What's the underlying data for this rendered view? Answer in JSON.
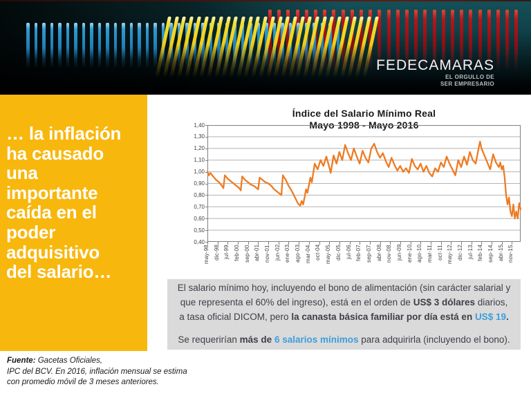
{
  "banner": {
    "logo": "FEDECAMARAS",
    "tagline_line1": "EL ORGULLO DE",
    "tagline_line2": "SER EMPRESARIO"
  },
  "sidebar": {
    "headline": "… la inflación\nha causado\nuna\nimportante\ncaída en el\npoder\nadquisitivo\ndel salario…"
  },
  "chart_data": {
    "type": "line",
    "title_line1": "Índice del Salario Mínimo Real",
    "title_line2": "Mayo 1998 - Mayo 2016",
    "xlabel": "",
    "ylabel": "",
    "ylim": [
      0.4,
      1.4
    ],
    "ytick_step": 0.1,
    "ytick_labels": [
      "1,40",
      "1,30",
      "1,20",
      "1,10",
      "1,00",
      "0,90",
      "0,80",
      "0,70",
      "0,60",
      "0,50",
      "0,40"
    ],
    "xtick_labels": [
      "may-98",
      "dic-98",
      "jul-99",
      "feb-00",
      "sep-00",
      "abr-01",
      "nov-01",
      "jun-02",
      "ene-03",
      "ago-03",
      "mar-04",
      "oct-04",
      "may-05",
      "dic-05",
      "jul-06",
      "feb-07",
      "sep-07",
      "abr-08",
      "nov-08",
      "jun-09",
      "ene-10",
      "ago-10",
      "mar-11",
      "oct-11",
      "may-12",
      "dic-12",
      "jul-13",
      "feb-14",
      "sep-14",
      "abr-15",
      "nov-15"
    ],
    "xtick_month_interval": 7,
    "months_total": 217,
    "grid": true,
    "legend": "none",
    "series_name": "Índice del Salario Mínimo Real",
    "points": [
      [
        0,
        1.0
      ],
      [
        1,
        0.97
      ],
      [
        2,
        0.99
      ],
      [
        4,
        0.96
      ],
      [
        6,
        0.93
      ],
      [
        8,
        0.91
      ],
      [
        10,
        0.88
      ],
      [
        11,
        0.86
      ],
      [
        12,
        0.97
      ],
      [
        14,
        0.94
      ],
      [
        16,
        0.92
      ],
      [
        18,
        0.9
      ],
      [
        20,
        0.88
      ],
      [
        22,
        0.86
      ],
      [
        23,
        0.84
      ],
      [
        24,
        0.96
      ],
      [
        26,
        0.93
      ],
      [
        28,
        0.91
      ],
      [
        30,
        0.89
      ],
      [
        32,
        0.88
      ],
      [
        34,
        0.86
      ],
      [
        35,
        0.85
      ],
      [
        36,
        0.95
      ],
      [
        38,
        0.93
      ],
      [
        40,
        0.91
      ],
      [
        42,
        0.9
      ],
      [
        44,
        0.88
      ],
      [
        46,
        0.85
      ],
      [
        48,
        0.83
      ],
      [
        50,
        0.81
      ],
      [
        51,
        0.8
      ],
      [
        52,
        0.97
      ],
      [
        54,
        0.93
      ],
      [
        56,
        0.88
      ],
      [
        58,
        0.84
      ],
      [
        60,
        0.79
      ],
      [
        62,
        0.74
      ],
      [
        63,
        0.72
      ],
      [
        64,
        0.71
      ],
      [
        65,
        0.75
      ],
      [
        66,
        0.72
      ],
      [
        67,
        0.78
      ],
      [
        68,
        0.85
      ],
      [
        69,
        0.82
      ],
      [
        71,
        0.95
      ],
      [
        72,
        0.91
      ],
      [
        74,
        1.07
      ],
      [
        76,
        1.02
      ],
      [
        78,
        1.1
      ],
      [
        80,
        1.05
      ],
      [
        82,
        1.13
      ],
      [
        84,
        1.04
      ],
      [
        85,
        0.99
      ],
      [
        87,
        1.14
      ],
      [
        89,
        1.07
      ],
      [
        91,
        1.17
      ],
      [
        93,
        1.1
      ],
      [
        95,
        1.23
      ],
      [
        97,
        1.16
      ],
      [
        99,
        1.1
      ],
      [
        101,
        1.2
      ],
      [
        103,
        1.13
      ],
      [
        105,
        1.07
      ],
      [
        107,
        1.18
      ],
      [
        109,
        1.12
      ],
      [
        111,
        1.08
      ],
      [
        113,
        1.2
      ],
      [
        115,
        1.24
      ],
      [
        117,
        1.17
      ],
      [
        119,
        1.12
      ],
      [
        121,
        1.16
      ],
      [
        123,
        1.09
      ],
      [
        125,
        1.04
      ],
      [
        127,
        1.12
      ],
      [
        129,
        1.06
      ],
      [
        131,
        1.01
      ],
      [
        133,
        1.05
      ],
      [
        135,
        1.0
      ],
      [
        137,
        1.03
      ],
      [
        139,
        0.99
      ],
      [
        141,
        1.11
      ],
      [
        143,
        1.05
      ],
      [
        145,
        1.02
      ],
      [
        147,
        1.07
      ],
      [
        149,
        1.0
      ],
      [
        151,
        1.05
      ],
      [
        153,
        0.99
      ],
      [
        155,
        0.96
      ],
      [
        157,
        1.03
      ],
      [
        159,
        1.0
      ],
      [
        161,
        1.08
      ],
      [
        163,
        1.04
      ],
      [
        165,
        1.13
      ],
      [
        167,
        1.07
      ],
      [
        169,
        1.02
      ],
      [
        171,
        0.97
      ],
      [
        173,
        1.1
      ],
      [
        175,
        1.04
      ],
      [
        177,
        1.13
      ],
      [
        179,
        1.06
      ],
      [
        181,
        1.17
      ],
      [
        183,
        1.1
      ],
      [
        185,
        1.07
      ],
      [
        187,
        1.2
      ],
      [
        188,
        1.26
      ],
      [
        189,
        1.2
      ],
      [
        191,
        1.14
      ],
      [
        193,
        1.08
      ],
      [
        195,
        1.02
      ],
      [
        197,
        1.15
      ],
      [
        199,
        1.08
      ],
      [
        201,
        1.04
      ],
      [
        202,
        1.08
      ],
      [
        203,
        1.02
      ],
      [
        204,
        1.05
      ],
      [
        205,
        0.95
      ],
      [
        206,
        0.8
      ],
      [
        207,
        0.72
      ],
      [
        208,
        0.78
      ],
      [
        209,
        0.66
      ],
      [
        210,
        0.62
      ],
      [
        211,
        0.72
      ],
      [
        212,
        0.6
      ],
      [
        213,
        0.66
      ],
      [
        214,
        0.6
      ],
      [
        215,
        0.73
      ],
      [
        216,
        0.68
      ]
    ]
  },
  "infobox": {
    "paragraph1": [
      {
        "text": "El  salario mínimo hoy, incluyendo el bono de alimentación (sin carácter salarial y que representa  el 60% del ingreso), está en el orden de  ",
        "bold": false,
        "blue": false
      },
      {
        "text": "US$ 3 dólares",
        "bold": true,
        "blue": false
      },
      {
        "text": " diarios, a tasa oficial DICOM, pero ",
        "bold": false,
        "blue": false
      },
      {
        "text": "la canasta básica familiar por día está en ",
        "bold": true,
        "blue": false
      },
      {
        "text": "US$ 19",
        "bold": true,
        "blue": true
      },
      {
        "text": ".",
        "bold": true,
        "blue": false
      }
    ],
    "paragraph2": [
      {
        "text": "Se requerirían ",
        "bold": false,
        "blue": false
      },
      {
        "text": "más de ",
        "bold": true,
        "blue": false
      },
      {
        "text": "6 salarios mínimos",
        "bold": true,
        "blue": true
      },
      {
        "text": " para adquirirla (incluyendo el bono).",
        "bold": false,
        "blue": false
      }
    ]
  },
  "footer": {
    "source_label": "Fuente:",
    "source_rest": " Gacetas Oficiales,",
    "line2": "IPC del BCV. En 2016, inflación mensual se estima",
    "line3": "con promedio móvil de 3 meses anteriores."
  },
  "theme": {
    "sidebar_yellow": "#F8B70D",
    "infobox_gray": "#DADADA",
    "accent_blue": "#3E9EDB",
    "line_orange": "#EE7B22",
    "banner_bar_blue": "#2F9AD2",
    "banner_bar_yellow": "#F2CE15",
    "banner_bar_red": "#B5161C",
    "banner_teal": "#11484F",
    "grid_gray": "#B3B3B3",
    "axis_gray": "#7F7F7F"
  }
}
